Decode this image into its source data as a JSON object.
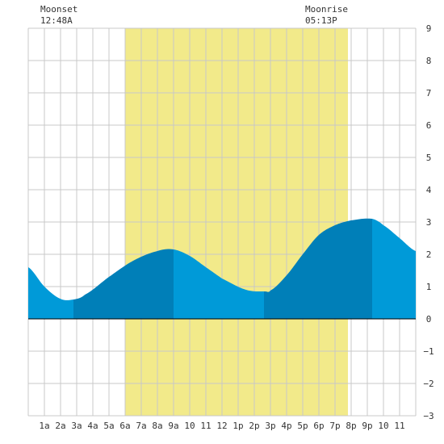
{
  "chart_data": {
    "type": "area",
    "annotations": {
      "moonset": {
        "label": "Moonset",
        "time": "12:48A",
        "hour": 0.8
      },
      "moonrise": {
        "label": "Moonrise",
        "time": "05:13P",
        "hour": 17.22
      }
    },
    "daylight": {
      "start_hour": 6,
      "end_hour": 19.8
    },
    "x_ticks": [
      "1a",
      "2a",
      "3a",
      "4a",
      "5a",
      "6a",
      "7a",
      "8a",
      "9a",
      "10",
      "11",
      "12",
      "1p",
      "2p",
      "3p",
      "4p",
      "5p",
      "6p",
      "7p",
      "8p",
      "9p",
      "10",
      "11"
    ],
    "x_tick_hours": [
      1,
      2,
      3,
      4,
      5,
      6,
      7,
      8,
      9,
      10,
      11,
      12,
      13,
      14,
      15,
      16,
      17,
      18,
      19,
      20,
      21,
      22,
      23
    ],
    "xlim": [
      0,
      24
    ],
    "ylim": [
      -3,
      9
    ],
    "y_ticks": [
      9,
      8,
      7,
      6,
      5,
      4,
      3,
      2,
      1,
      0,
      -1,
      -2,
      -3
    ],
    "tide_series": {
      "hours": [
        0,
        1,
        2,
        2.8,
        3.5,
        5,
        6.5,
        8,
        9,
        10,
        11,
        12,
        13.5,
        14.7,
        15,
        16,
        17,
        18,
        19,
        20,
        21.3,
        22,
        23,
        24
      ],
      "values": [
        1.6,
        1.0,
        0.62,
        0.6,
        0.75,
        1.3,
        1.8,
        2.1,
        2.15,
        1.95,
        1.6,
        1.25,
        0.9,
        0.85,
        0.88,
        1.35,
        2.0,
        2.6,
        2.9,
        3.05,
        3.1,
        2.9,
        2.5,
        2.1
      ]
    },
    "extremes": [
      {
        "type": "low",
        "hour": 2.8,
        "value": 0.6
      },
      {
        "type": "high",
        "hour": 9.0,
        "value": 2.15
      },
      {
        "type": "low",
        "hour": 14.6,
        "value": 0.85
      },
      {
        "type": "high",
        "hour": 21.3,
        "value": 3.1
      }
    ],
    "colors": {
      "daylight": "#f2ea8a",
      "tide_light": "#009ad8",
      "tide_dark": "#007fb8",
      "grid": "#c8c8c8",
      "axis_text": "#333333"
    },
    "grid": true
  }
}
